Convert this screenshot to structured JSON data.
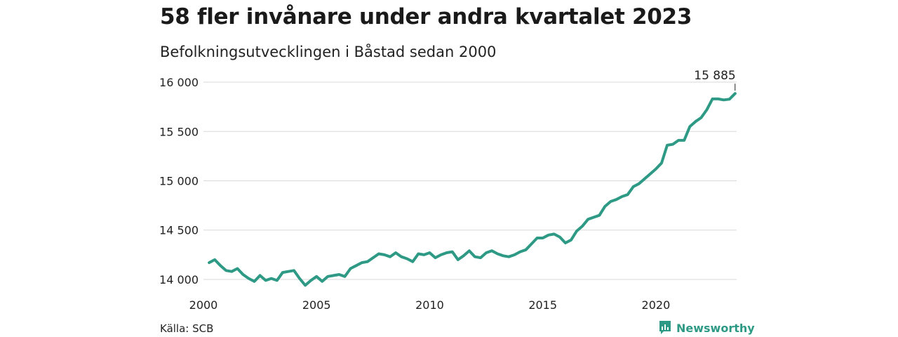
{
  "title": "58 fler invånare under andra kvartalet 2023",
  "subtitle": "Befolkningsutvecklingen i Båstad sedan 2000",
  "source": "Källa: SCB",
  "brand": {
    "name": "Newsworthy",
    "icon": "newsworthy-logo-icon",
    "color": "#2e9a85"
  },
  "chart_data": {
    "type": "line",
    "line_color": "#2e9a85",
    "grid": true,
    "ylim": [
      13950,
      16050
    ],
    "xlim": [
      2000,
      2024.5
    ],
    "y_ticks": [
      14000,
      14500,
      15000,
      15500,
      16000
    ],
    "y_tick_labels": [
      "14 000",
      "14 500",
      "15 000",
      "15 500",
      "16 000"
    ],
    "x_ticks": [
      2000,
      2005,
      2010,
      2015,
      2020
    ],
    "x_tick_labels": [
      "2000",
      "2005",
      "2010",
      "2015",
      "2020"
    ],
    "end_label": "15 885",
    "series": [
      {
        "x": [
          2000.25,
          2000.5,
          2000.75,
          2001.0,
          2001.25,
          2001.5,
          2001.75,
          2002.0,
          2002.25,
          2002.5,
          2002.75,
          2003.0,
          2003.25,
          2003.5,
          2003.75,
          2004.0,
          2004.25,
          2004.5,
          2004.75,
          2005.0,
          2005.25,
          2005.5,
          2005.75,
          2006.0,
          2006.25,
          2006.5,
          2006.75,
          2007.0,
          2007.25,
          2007.5,
          2007.75,
          2008.0,
          2008.25,
          2008.5,
          2008.75,
          2009.0,
          2009.25,
          2009.5,
          2009.75,
          2010.0,
          2010.25,
          2010.5,
          2010.75,
          2011.0,
          2011.25,
          2011.5,
          2011.75,
          2012.0,
          2012.25,
          2012.5,
          2012.75,
          2013.0,
          2013.25,
          2013.5,
          2013.75,
          2014.0,
          2014.25,
          2014.5,
          2014.75,
          2015.0,
          2015.25,
          2015.5,
          2015.75,
          2016.0,
          2016.25,
          2016.5,
          2016.75,
          2017.0,
          2017.25,
          2017.5,
          2017.75,
          2018.0,
          2018.25,
          2018.5,
          2018.75,
          2019.0,
          2019.25,
          2019.5,
          2019.75,
          2020.0,
          2020.25,
          2020.5,
          2020.75,
          2021.0,
          2021.25,
          2021.5,
          2021.75,
          2022.0,
          2022.25,
          2022.5,
          2022.75,
          2023.0,
          2023.25,
          2023.5
        ],
        "values": [
          14170,
          14200,
          14140,
          14090,
          14080,
          14110,
          14050,
          14010,
          13980,
          14040,
          13990,
          14010,
          13990,
          14070,
          14080,
          14090,
          14010,
          13940,
          13990,
          14030,
          13980,
          14030,
          14040,
          14050,
          14030,
          14110,
          14140,
          14170,
          14180,
          14220,
          14260,
          14250,
          14230,
          14270,
          14230,
          14210,
          14180,
          14260,
          14250,
          14270,
          14220,
          14250,
          14270,
          14280,
          14200,
          14240,
          14290,
          14230,
          14220,
          14270,
          14290,
          14260,
          14240,
          14230,
          14250,
          14280,
          14300,
          14360,
          14420,
          14420,
          14450,
          14460,
          14430,
          14370,
          14400,
          14490,
          14540,
          14610,
          14630,
          14650,
          14740,
          14790,
          14810,
          14840,
          14860,
          14940,
          14970,
          15020,
          15070,
          15120,
          15180,
          15360,
          15370,
          15410,
          15410,
          15550,
          15600,
          15640,
          15720,
          15830,
          15830,
          15820,
          15827,
          15885
        ]
      }
    ]
  }
}
